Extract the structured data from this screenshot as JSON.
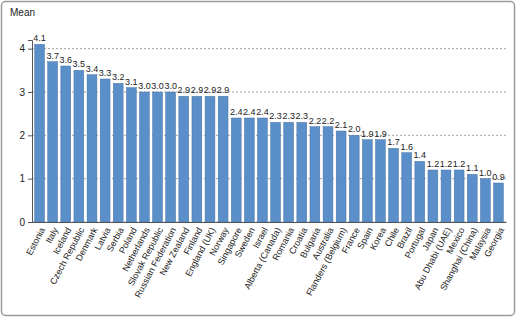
{
  "chart_data": {
    "type": "bar",
    "y_label": "Mean",
    "categories": [
      "Estonia",
      "Italy",
      "Iceland",
      "Czech Republic",
      "Denmark",
      "Latvia",
      "Serbia",
      "Poland",
      "Netherlands",
      "Slovak Republic",
      "Russian Federation",
      "New Zealand",
      "Finland",
      "England (UK)",
      "Norway",
      "Singapore",
      "Sweden",
      "Israel",
      "Alberta (Canada)",
      "Romania",
      "Croatia",
      "Bulgaria",
      "Australia",
      "Flanders (Belgium)",
      "France",
      "Spain",
      "Korea",
      "Chile",
      "Brazil",
      "Portugal",
      "Japan",
      "Abu Dhabi (UAE)",
      "Mexico",
      "Shanghai (China)",
      "Malaysia",
      "Georgia"
    ],
    "values": [
      4.1,
      3.7,
      3.6,
      3.5,
      3.4,
      3.3,
      3.2,
      3.1,
      3.0,
      3.0,
      3.0,
      2.9,
      2.9,
      2.9,
      2.9,
      2.4,
      2.4,
      2.4,
      2.3,
      2.3,
      2.3,
      2.2,
      2.2,
      2.1,
      2.0,
      1.9,
      1.9,
      1.7,
      1.6,
      1.4,
      1.2,
      1.2,
      1.2,
      1.1,
      1.0,
      0.9
    ],
    "value_labels": [
      "4.1",
      "3.7",
      "3.6",
      "3.5",
      "3.4",
      "3.3",
      "3.2",
      "3.1",
      "3.0",
      "3.0",
      "3.0",
      "2.9",
      "2.9",
      "2.9",
      "2.9",
      "2.4",
      "2.4",
      "2.4",
      "2.3",
      "2.3",
      "2.3",
      "2.2",
      "2.2",
      "2.1",
      "2.0",
      "1.9",
      "1.9",
      "1.7",
      "1.6",
      "1.4",
      "1.2",
      "1.2",
      "1.2",
      "1.1",
      "1.0",
      "0.9"
    ],
    "color": "#5b8fc9",
    "ylim": [
      0,
      4.2
    ],
    "yticks": [
      0,
      1,
      2,
      3,
      4
    ],
    "grid": true,
    "data_labels": true
  }
}
